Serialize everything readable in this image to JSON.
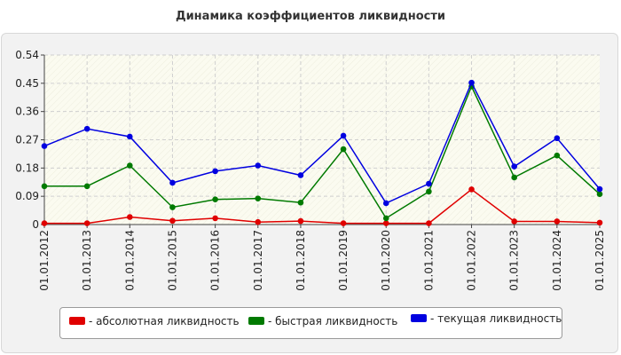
{
  "chart_data": {
    "type": "line",
    "title": "Динамика коэффициентов ликвидности",
    "xlabel": "",
    "ylabel": "",
    "categories": [
      "01.01.2012",
      "01.01.2013",
      "01.01.2014",
      "01.01.2015",
      "01.01.2016",
      "01.01.2017",
      "01.01.2018",
      "01.01.2019",
      "01.01.2020",
      "01.01.2021",
      "01.01.2022",
      "01.01.2023",
      "01.01.2024",
      "01.01.2025"
    ],
    "ylim": [
      0,
      0.54
    ],
    "yticks": [
      "0",
      "0.09",
      "0.18",
      "0.27",
      "0.36",
      "0.45",
      "0.54"
    ],
    "grid": true,
    "legend_position": "bottom",
    "series": [
      {
        "name": "- абсолютная ликвидность",
        "color": "#e00000",
        "values": [
          0.004,
          0.004,
          0.024,
          0.012,
          0.02,
          0.008,
          0.011,
          0.004,
          0.004,
          0.004,
          0.112,
          0.01,
          0.01,
          0.006
        ]
      },
      {
        "name": "- быстрая ликвидность",
        "color": "#007a00",
        "values": [
          0.122,
          0.122,
          0.188,
          0.055,
          0.08,
          0.083,
          0.07,
          0.24,
          0.02,
          0.105,
          0.44,
          0.15,
          0.22,
          0.097
        ]
      },
      {
        "name": "- текущая ликвидность",
        "color": "#0000e0",
        "values": [
          0.25,
          0.305,
          0.28,
          0.133,
          0.17,
          0.188,
          0.157,
          0.283,
          0.068,
          0.13,
          0.452,
          0.185,
          0.275,
          0.113
        ]
      }
    ]
  }
}
